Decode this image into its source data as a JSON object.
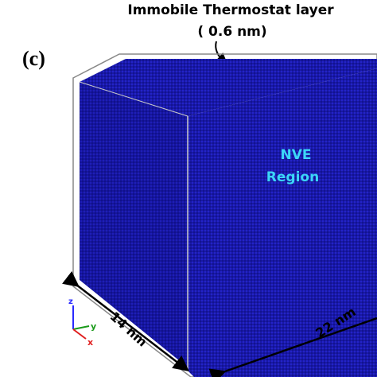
{
  "header": {
    "title": "Immobile Thermostat layer",
    "subtitle": "( 0.6 nm)"
  },
  "panel_label": "(c)",
  "region_label": {
    "line1": "NVE",
    "line2": "Region"
  },
  "dimensions": {
    "depth": "14 nm",
    "length": "22 nm"
  },
  "axes": {
    "z": "z",
    "y": "y",
    "x": "x"
  }
}
